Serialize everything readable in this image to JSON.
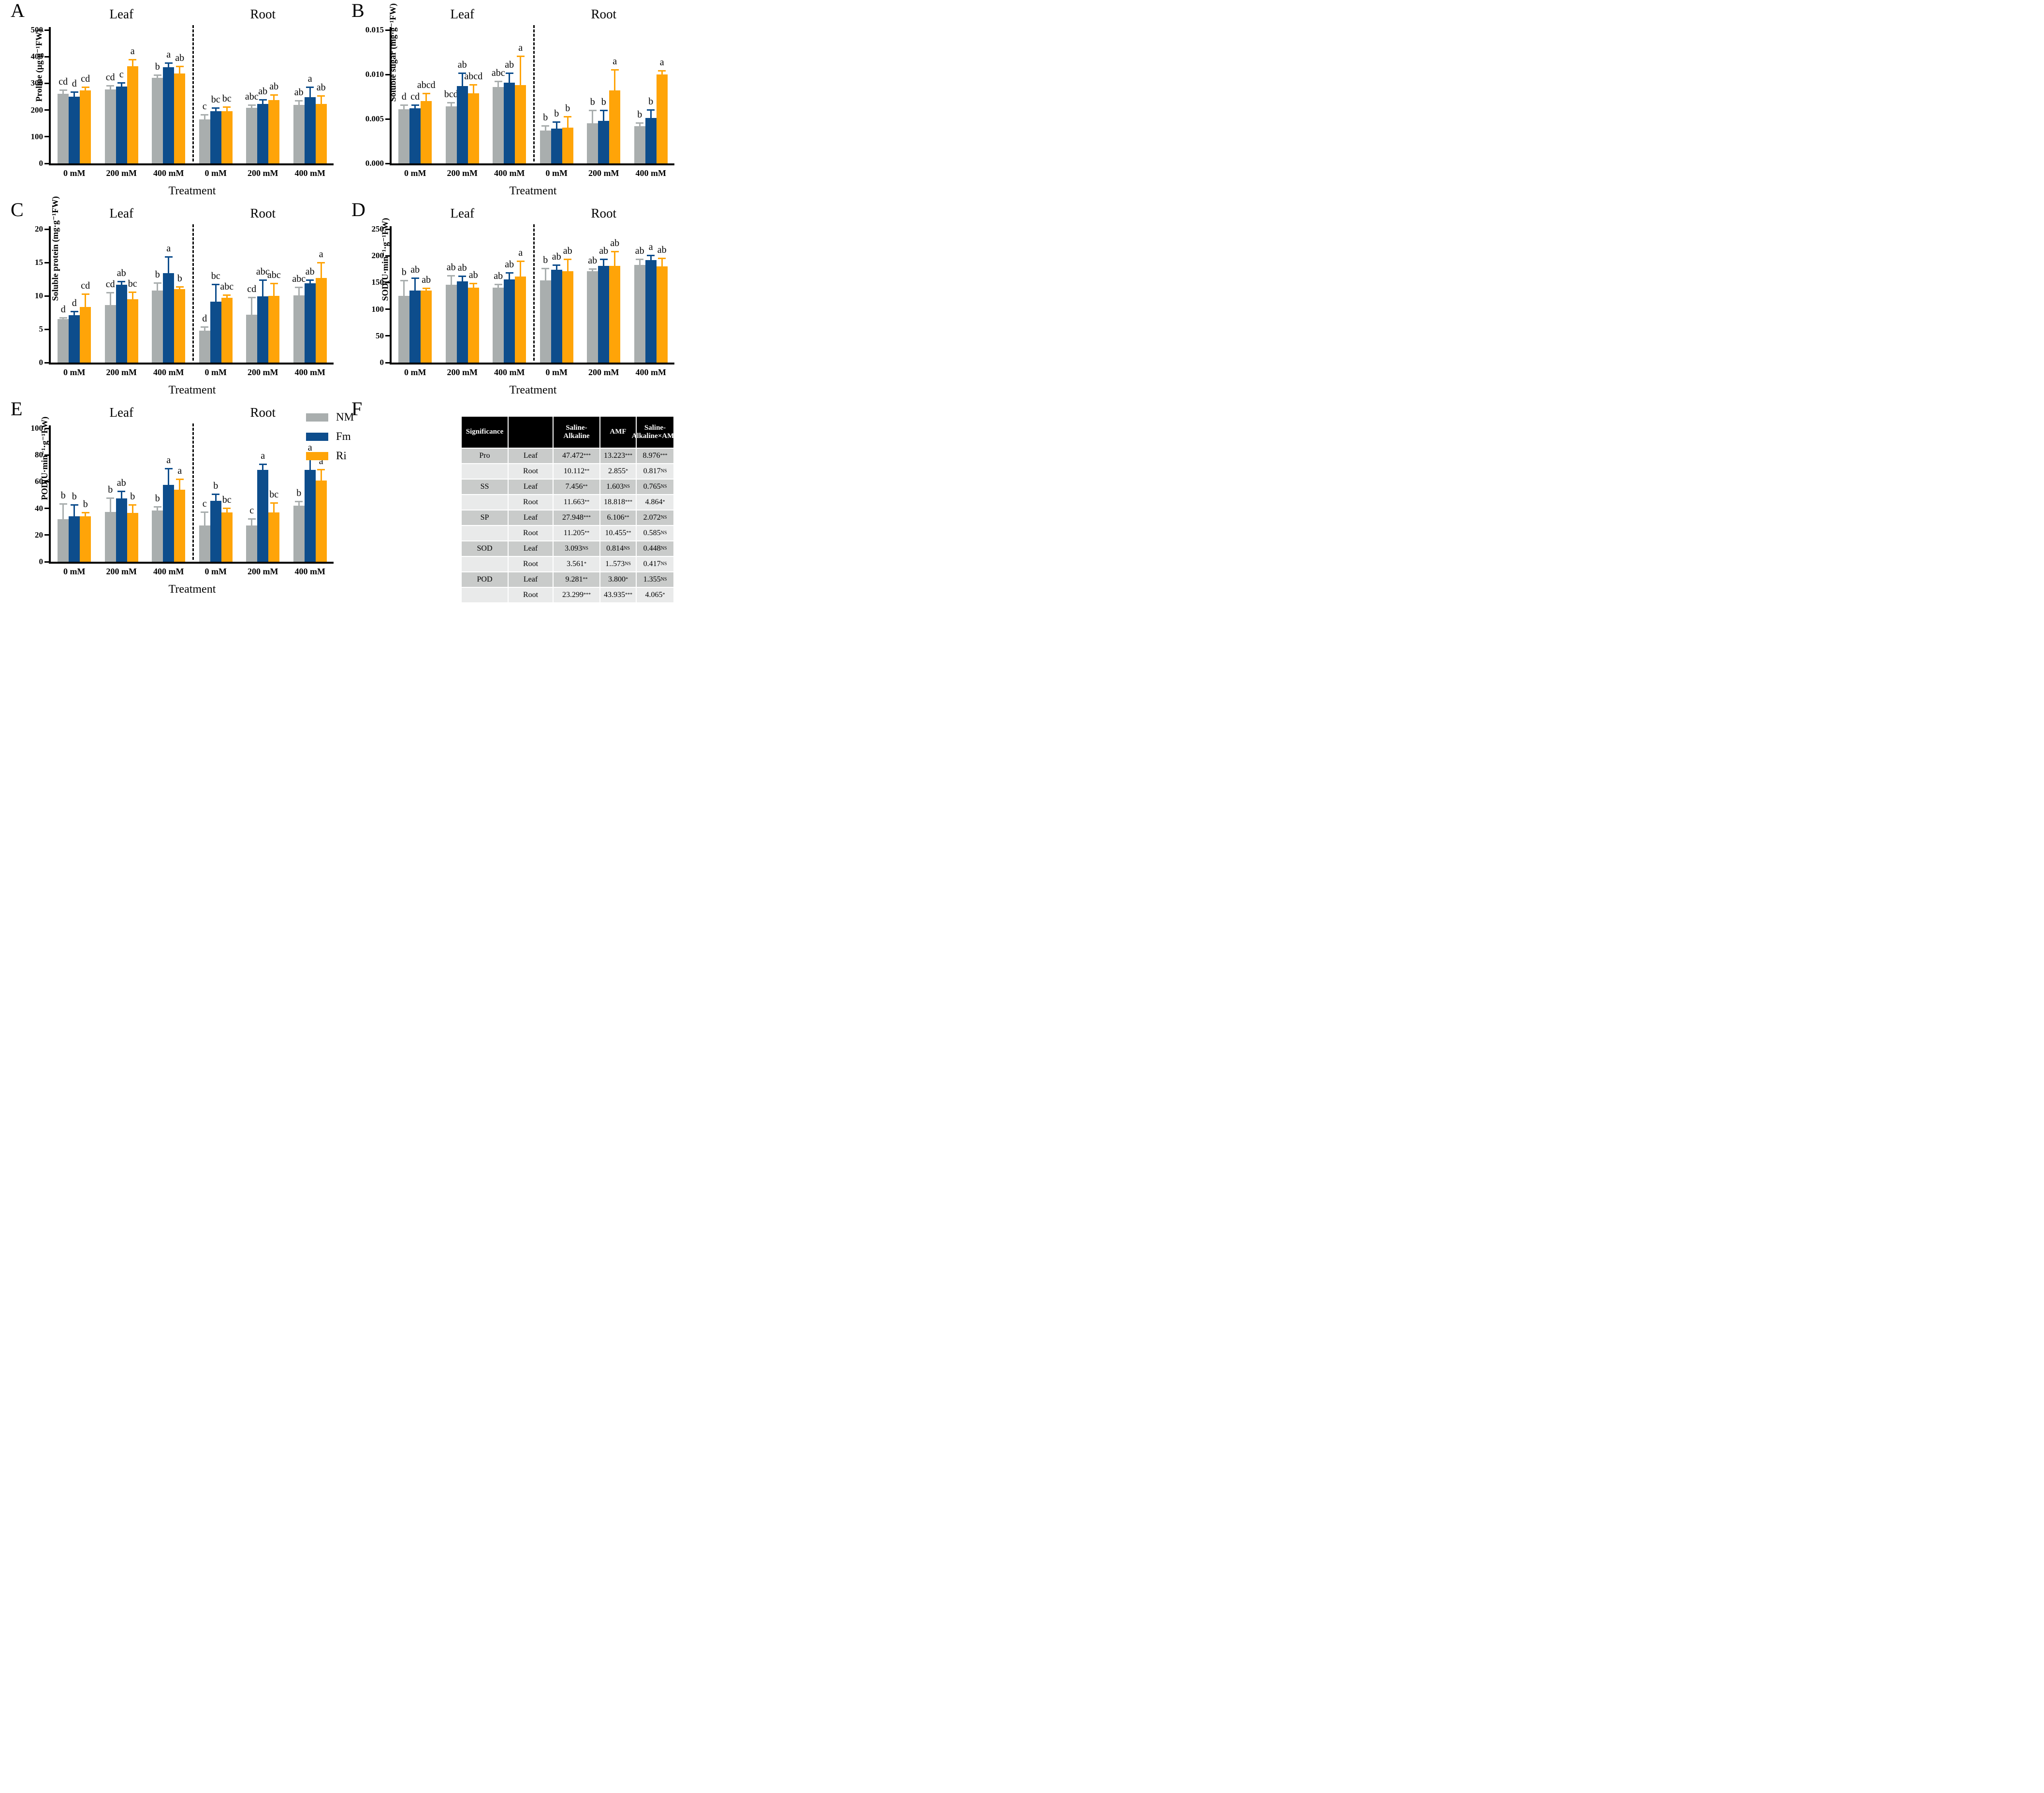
{
  "figure": {
    "legend": {
      "items": [
        {
          "label": "NM",
          "color": "#a9aeae"
        },
        {
          "label": "Fm",
          "color": "#0d4d8c"
        },
        {
          "label": "Ri",
          "color": "#ffa408"
        }
      ]
    }
  },
  "chart_data": [
    {
      "panel": "A",
      "type": "bar",
      "sections": [
        "Leaf",
        "Root"
      ],
      "ylabel": "Proline (µg·g⁻¹FW)",
      "xlabel": "Treatment",
      "categories": [
        "0 mM",
        "200 mM",
        "400 mM"
      ],
      "ymax": 500,
      "yticks": [
        "0",
        "100",
        "200",
        "300",
        "400",
        "500"
      ],
      "grid": false,
      "legend_position": "figure-right",
      "series": [
        {
          "name": "NM",
          "color": "#a9aeae",
          "values": [
            260,
            277,
            320,
            165,
            208,
            220
          ],
          "errors": [
            14,
            12,
            9,
            16,
            10,
            13
          ],
          "letters": [
            "cd",
            "cd",
            "b",
            "c",
            "abc",
            "ab"
          ]
        },
        {
          "name": "Fm",
          "color": "#0d4d8c",
          "values": [
            250,
            288,
            360,
            196,
            222,
            248
          ],
          "errors": [
            17,
            12,
            15,
            10,
            16,
            36
          ],
          "letters": [
            "d",
            "c",
            "a",
            "bc",
            "ab",
            "a"
          ]
        },
        {
          "name": "Ri",
          "color": "#ffa408",
          "values": [
            273,
            365,
            337,
            196,
            237,
            222
          ],
          "errors": [
            12,
            22,
            25,
            15,
            19,
            30
          ],
          "letters": [
            "cd",
            "a",
            "ab",
            "bc",
            "ab",
            "ab"
          ]
        }
      ]
    },
    {
      "panel": "B",
      "type": "bar",
      "sections": [
        "Leaf",
        "Root"
      ],
      "ylabel": "Soluble sugar (mg·g⁻¹FW)",
      "xlabel": "Treatment",
      "categories": [
        "0 mM",
        "200 mM",
        "400 mM"
      ],
      "ymax": 0.015,
      "yticks": [
        "0.000",
        "0.005",
        "0.010",
        "0.015"
      ],
      "grid": false,
      "legend_position": "figure-right",
      "series": [
        {
          "name": "NM",
          "color": "#a9aeae",
          "values": [
            0.0061,
            0.0064,
            0.0086,
            0.0037,
            0.0045,
            0.0042
          ],
          "errors": [
            0.0004,
            0.0004,
            0.0006,
            0.0005,
            0.0014,
            0.0003
          ],
          "letters": [
            "d",
            "bcd",
            "abc",
            "b",
            "b",
            "b"
          ]
        },
        {
          "name": "Fm",
          "color": "#0d4d8c",
          "values": [
            0.0062,
            0.0087,
            0.0091,
            0.0039,
            0.0048,
            0.0051
          ],
          "errors": [
            0.0003,
            0.0014,
            0.001,
            0.0007,
            0.0011,
            0.0009
          ],
          "letters": [
            "cd",
            "ab",
            "ab",
            "b",
            "b",
            "b"
          ]
        },
        {
          "name": "Ri",
          "color": "#ffa408",
          "values": [
            0.007,
            0.0079,
            0.0088,
            0.004,
            0.0082,
            0.01
          ],
          "errors": [
            0.0008,
            0.0009,
            0.0032,
            0.0012,
            0.0023,
            0.0004
          ],
          "letters": [
            "abcd",
            "abcd",
            "a",
            "b",
            "a",
            "a"
          ]
        }
      ]
    },
    {
      "panel": "C",
      "type": "bar",
      "sections": [
        "Leaf",
        "Root"
      ],
      "ylabel": "Soluble protein (mg·g⁻¹FW)",
      "xlabel": "Treatment",
      "categories": [
        "0 mM",
        "200 mM",
        "400 mM"
      ],
      "ymax": 20,
      "yticks": [
        "0",
        "5",
        "10",
        "15",
        "20"
      ],
      "grid": false,
      "legend_position": "figure-right",
      "series": [
        {
          "name": "NM",
          "color": "#a9aeae",
          "values": [
            6.5,
            8.6,
            10.8,
            4.8,
            7.2,
            10.1
          ],
          "errors": [
            0.2,
            1.8,
            1.1,
            0.5,
            2.5,
            1.1
          ],
          "letters": [
            "d",
            "cd",
            "b",
            "d",
            "cd",
            "abc"
          ]
        },
        {
          "name": "Fm",
          "color": "#0d4d8c",
          "values": [
            7.1,
            11.7,
            13.4,
            9.1,
            9.9,
            11.9
          ],
          "errors": [
            0.5,
            0.4,
            2.4,
            2.6,
            2.4,
            0.4
          ],
          "letters": [
            "d",
            "ab",
            "a",
            "bc",
            "abc",
            "ab"
          ]
        },
        {
          "name": "Ri",
          "color": "#ffa408",
          "values": [
            8.3,
            9.5,
            11.0,
            9.7,
            10.0,
            12.7
          ],
          "errors": [
            1.9,
            1.0,
            0.3,
            0.4,
            1.8,
            2.2
          ],
          "letters": [
            "cd",
            "bc",
            "b",
            "abc",
            "abc",
            "a"
          ]
        }
      ]
    },
    {
      "panel": "D",
      "type": "bar",
      "sections": [
        "Leaf",
        "Root"
      ],
      "ylabel": "SOD(U·min⁻¹·g⁻¹FW)",
      "xlabel": "Treatment",
      "categories": [
        "0 mM",
        "200 mM",
        "400 mM"
      ],
      "ymax": 250,
      "yticks": [
        "0",
        "50",
        "100",
        "150",
        "200",
        "250"
      ],
      "grid": false,
      "legend_position": "figure-right",
      "series": [
        {
          "name": "NM",
          "color": "#a9aeae",
          "values": [
            125,
            146,
            140,
            154,
            171,
            183
          ],
          "errors": [
            28,
            16,
            6,
            22,
            4,
            10
          ],
          "letters": [
            "b",
            "ab",
            "ab",
            "b",
            "ab",
            "ab"
          ]
        },
        {
          "name": "Fm",
          "color": "#0d4d8c",
          "values": [
            135,
            152,
            156,
            174,
            181,
            192
          ],
          "errors": [
            23,
            9,
            12,
            8,
            12,
            8
          ],
          "letters": [
            "ab",
            "ab",
            "ab",
            "ab",
            "ab",
            "a"
          ]
        },
        {
          "name": "Ri",
          "color": "#ffa408",
          "values": [
            135,
            140,
            161,
            171,
            181,
            180
          ],
          "errors": [
            4,
            8,
            28,
            22,
            26,
            15
          ],
          "letters": [
            "ab",
            "ab",
            "a",
            "ab",
            "ab",
            "ab"
          ]
        }
      ]
    },
    {
      "panel": "E",
      "type": "bar",
      "sections": [
        "Leaf",
        "Root"
      ],
      "ylabel": "POD(U·min⁻¹·g⁻¹FW)",
      "xlabel": "Treatment",
      "categories": [
        "0 mM",
        "200 mM",
        "400 mM"
      ],
      "ymax": 100,
      "yticks": [
        "0",
        "20",
        "40",
        "60",
        "80",
        "100"
      ],
      "grid": false,
      "legend_position": "figure-right",
      "series": [
        {
          "name": "NM",
          "color": "#a9aeae",
          "values": [
            32,
            37.5,
            38.5,
            27,
            27,
            42
          ],
          "errors": [
            11,
            10,
            2.5,
            10,
            5,
            3
          ],
          "letters": [
            "b",
            "b",
            "b",
            "c",
            "c",
            "b"
          ]
        },
        {
          "name": "Fm",
          "color": "#0d4d8c",
          "values": [
            34,
            47.5,
            57.5,
            45.5,
            69,
            69
          ],
          "errors": [
            8.5,
            5,
            12,
            5,
            4,
            10
          ],
          "letters": [
            "b",
            "ab",
            "a",
            "b",
            "a",
            "a"
          ]
        },
        {
          "name": "Ri",
          "color": "#ffa408",
          "values": [
            34,
            36.5,
            54,
            37,
            37,
            61
          ],
          "errors": [
            2.5,
            6,
            7.5,
            3,
            7,
            8
          ],
          "letters": [
            "b",
            "b",
            "a",
            "bc",
            "bc",
            "a"
          ]
        }
      ]
    },
    {
      "panel": "F",
      "type": "table",
      "columns": [
        "Significance",
        "",
        "Saline-Alkaline",
        "AMF",
        "Saline-\nAlkaline×AMF"
      ],
      "rows": [
        {
          "group": "Pro",
          "tissue": "Leaf",
          "saline": {
            "v": "47.472",
            "s": "***"
          },
          "amf": {
            "v": "13.223",
            "s": "***"
          },
          "ia": {
            "v": "8.976",
            "s": "***"
          }
        },
        {
          "group": "",
          "tissue": "Root",
          "saline": {
            "v": "10.112",
            "s": "**"
          },
          "amf": {
            "v": "2.855",
            "s": "*"
          },
          "ia": {
            "v": "0.817",
            "s": "NS"
          }
        },
        {
          "group": "SS",
          "tissue": "Leaf",
          "saline": {
            "v": "7.456",
            "s": "**"
          },
          "amf": {
            "v": "1.603",
            "s": "NS"
          },
          "ia": {
            "v": "0.765",
            "s": "NS"
          }
        },
        {
          "group": "",
          "tissue": "Root",
          "saline": {
            "v": "11.663",
            "s": "**"
          },
          "amf": {
            "v": "18.818",
            "s": "***"
          },
          "ia": {
            "v": "4.864",
            "s": "*"
          }
        },
        {
          "group": "SP",
          "tissue": "Leaf",
          "saline": {
            "v": "27.948",
            "s": "***"
          },
          "amf": {
            "v": "6.106",
            "s": "**"
          },
          "ia": {
            "v": "2.072",
            "s": "NS"
          }
        },
        {
          "group": "",
          "tissue": "Root",
          "saline": {
            "v": "11.205",
            "s": "**"
          },
          "amf": {
            "v": "10.455",
            "s": "**"
          },
          "ia": {
            "v": "0.585",
            "s": "NS"
          }
        },
        {
          "group": "SOD",
          "tissue": "Leaf",
          "saline": {
            "v": "3.093",
            "s": "NS"
          },
          "amf": {
            "v": "0.814",
            "s": "NS"
          },
          "ia": {
            "v": "0.448",
            "s": "NS"
          }
        },
        {
          "group": "",
          "tissue": "Root",
          "saline": {
            "v": "3.561",
            "s": "*"
          },
          "amf": {
            "v": "1..573",
            "s": "NS"
          },
          "ia": {
            "v": "0.417",
            "s": "NS"
          }
        },
        {
          "group": "POD",
          "tissue": "Leaf",
          "saline": {
            "v": "9.281",
            "s": "**"
          },
          "amf": {
            "v": "3.800",
            "s": "*"
          },
          "ia": {
            "v": "1.355",
            "s": "NS"
          }
        },
        {
          "group": "",
          "tissue": "Root",
          "saline": {
            "v": "23.299",
            "s": "***"
          },
          "amf": {
            "v": "43.935",
            "s": "***"
          },
          "ia": {
            "v": "4.065",
            "s": "*"
          }
        }
      ]
    }
  ]
}
